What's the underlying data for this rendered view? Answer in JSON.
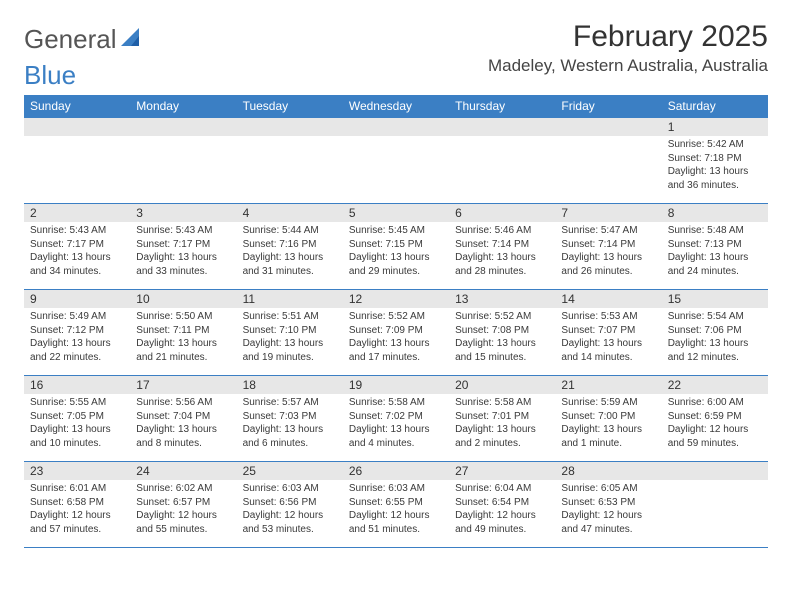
{
  "logo": {
    "text1": "General",
    "text2": "Blue"
  },
  "title": "February 2025",
  "location": "Madeley, Western Australia, Australia",
  "colors": {
    "header_bg": "#3b7fc4",
    "header_text": "#ffffff",
    "daynum_bg": "#e7e7e7",
    "row_border": "#3b7fc4",
    "body_text": "#3a3a3a",
    "background": "#ffffff"
  },
  "typography": {
    "title_fontsize": 30,
    "location_fontsize": 17,
    "header_fontsize": 12,
    "daynum_fontsize": 12,
    "cell_fontsize": 10
  },
  "columns": [
    "Sunday",
    "Monday",
    "Tuesday",
    "Wednesday",
    "Thursday",
    "Friday",
    "Saturday"
  ],
  "weeks": [
    [
      null,
      null,
      null,
      null,
      null,
      null,
      {
        "n": "1",
        "sr": "Sunrise: 5:42 AM",
        "ss": "Sunset: 7:18 PM",
        "dl": "Daylight: 13 hours and 36 minutes."
      }
    ],
    [
      {
        "n": "2",
        "sr": "Sunrise: 5:43 AM",
        "ss": "Sunset: 7:17 PM",
        "dl": "Daylight: 13 hours and 34 minutes."
      },
      {
        "n": "3",
        "sr": "Sunrise: 5:43 AM",
        "ss": "Sunset: 7:17 PM",
        "dl": "Daylight: 13 hours and 33 minutes."
      },
      {
        "n": "4",
        "sr": "Sunrise: 5:44 AM",
        "ss": "Sunset: 7:16 PM",
        "dl": "Daylight: 13 hours and 31 minutes."
      },
      {
        "n": "5",
        "sr": "Sunrise: 5:45 AM",
        "ss": "Sunset: 7:15 PM",
        "dl": "Daylight: 13 hours and 29 minutes."
      },
      {
        "n": "6",
        "sr": "Sunrise: 5:46 AM",
        "ss": "Sunset: 7:14 PM",
        "dl": "Daylight: 13 hours and 28 minutes."
      },
      {
        "n": "7",
        "sr": "Sunrise: 5:47 AM",
        "ss": "Sunset: 7:14 PM",
        "dl": "Daylight: 13 hours and 26 minutes."
      },
      {
        "n": "8",
        "sr": "Sunrise: 5:48 AM",
        "ss": "Sunset: 7:13 PM",
        "dl": "Daylight: 13 hours and 24 minutes."
      }
    ],
    [
      {
        "n": "9",
        "sr": "Sunrise: 5:49 AM",
        "ss": "Sunset: 7:12 PM",
        "dl": "Daylight: 13 hours and 22 minutes."
      },
      {
        "n": "10",
        "sr": "Sunrise: 5:50 AM",
        "ss": "Sunset: 7:11 PM",
        "dl": "Daylight: 13 hours and 21 minutes."
      },
      {
        "n": "11",
        "sr": "Sunrise: 5:51 AM",
        "ss": "Sunset: 7:10 PM",
        "dl": "Daylight: 13 hours and 19 minutes."
      },
      {
        "n": "12",
        "sr": "Sunrise: 5:52 AM",
        "ss": "Sunset: 7:09 PM",
        "dl": "Daylight: 13 hours and 17 minutes."
      },
      {
        "n": "13",
        "sr": "Sunrise: 5:52 AM",
        "ss": "Sunset: 7:08 PM",
        "dl": "Daylight: 13 hours and 15 minutes."
      },
      {
        "n": "14",
        "sr": "Sunrise: 5:53 AM",
        "ss": "Sunset: 7:07 PM",
        "dl": "Daylight: 13 hours and 14 minutes."
      },
      {
        "n": "15",
        "sr": "Sunrise: 5:54 AM",
        "ss": "Sunset: 7:06 PM",
        "dl": "Daylight: 13 hours and 12 minutes."
      }
    ],
    [
      {
        "n": "16",
        "sr": "Sunrise: 5:55 AM",
        "ss": "Sunset: 7:05 PM",
        "dl": "Daylight: 13 hours and 10 minutes."
      },
      {
        "n": "17",
        "sr": "Sunrise: 5:56 AM",
        "ss": "Sunset: 7:04 PM",
        "dl": "Daylight: 13 hours and 8 minutes."
      },
      {
        "n": "18",
        "sr": "Sunrise: 5:57 AM",
        "ss": "Sunset: 7:03 PM",
        "dl": "Daylight: 13 hours and 6 minutes."
      },
      {
        "n": "19",
        "sr": "Sunrise: 5:58 AM",
        "ss": "Sunset: 7:02 PM",
        "dl": "Daylight: 13 hours and 4 minutes."
      },
      {
        "n": "20",
        "sr": "Sunrise: 5:58 AM",
        "ss": "Sunset: 7:01 PM",
        "dl": "Daylight: 13 hours and 2 minutes."
      },
      {
        "n": "21",
        "sr": "Sunrise: 5:59 AM",
        "ss": "Sunset: 7:00 PM",
        "dl": "Daylight: 13 hours and 1 minute."
      },
      {
        "n": "22",
        "sr": "Sunrise: 6:00 AM",
        "ss": "Sunset: 6:59 PM",
        "dl": "Daylight: 12 hours and 59 minutes."
      }
    ],
    [
      {
        "n": "23",
        "sr": "Sunrise: 6:01 AM",
        "ss": "Sunset: 6:58 PM",
        "dl": "Daylight: 12 hours and 57 minutes."
      },
      {
        "n": "24",
        "sr": "Sunrise: 6:02 AM",
        "ss": "Sunset: 6:57 PM",
        "dl": "Daylight: 12 hours and 55 minutes."
      },
      {
        "n": "25",
        "sr": "Sunrise: 6:03 AM",
        "ss": "Sunset: 6:56 PM",
        "dl": "Daylight: 12 hours and 53 minutes."
      },
      {
        "n": "26",
        "sr": "Sunrise: 6:03 AM",
        "ss": "Sunset: 6:55 PM",
        "dl": "Daylight: 12 hours and 51 minutes."
      },
      {
        "n": "27",
        "sr": "Sunrise: 6:04 AM",
        "ss": "Sunset: 6:54 PM",
        "dl": "Daylight: 12 hours and 49 minutes."
      },
      {
        "n": "28",
        "sr": "Sunrise: 6:05 AM",
        "ss": "Sunset: 6:53 PM",
        "dl": "Daylight: 12 hours and 47 minutes."
      },
      null
    ]
  ]
}
